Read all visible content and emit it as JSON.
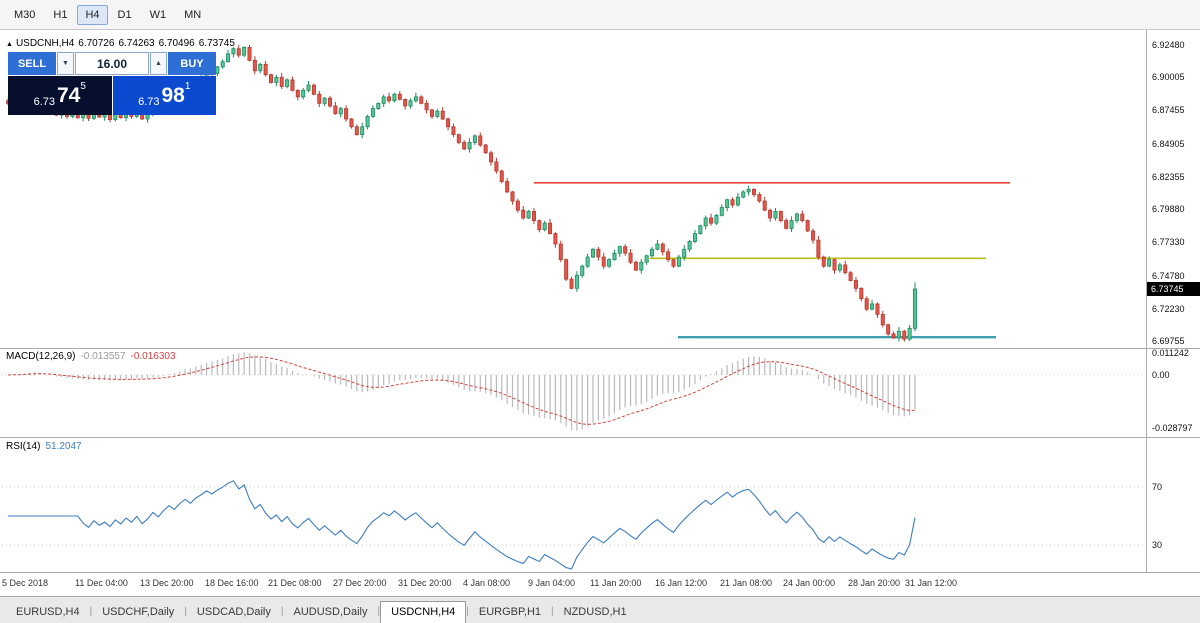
{
  "icons": {
    "chart_arrow": "▲",
    "spin_down": "▼",
    "spin_up": "▲"
  },
  "toolbar": {
    "timeframes": [
      "M30",
      "H1",
      "H4",
      "D1",
      "W1",
      "MN"
    ],
    "active": "H4"
  },
  "chart_header": {
    "symbol": "USDCNH,H4",
    "open": "6.70726",
    "high": "6.74263",
    "low": "6.70496",
    "close": "6.73745"
  },
  "trade_panel": {
    "sell_label": "SELL",
    "buy_label": "BUY",
    "volume": "16.00",
    "sell_price": {
      "small": "6.73",
      "big": "74",
      "sup": "5"
    },
    "buy_price": {
      "small": "6.73",
      "big": "98",
      "sup": "1"
    }
  },
  "macd_panel": {
    "title": "MACD(12,26,9)",
    "macd_value": "-0.013557",
    "signal_value": "-0.016303"
  },
  "rsi_panel": {
    "title": "RSI(14)",
    "value": "51.2047"
  },
  "tabs": {
    "items": [
      "EURUSD,H4",
      "USDCHF,Daily",
      "USDCAD,Daily",
      "AUDUSD,Daily",
      "USDCNH,H4",
      "EURGBP,H1",
      "NZDUSD,H1"
    ],
    "active": "USDCNH,H4"
  },
  "colors": {
    "bull": "#57c695",
    "bull_border": "#1d8a60",
    "bear": "#e2574a",
    "bear_border": "#b63a30",
    "macd_hist": "#b9b9b9",
    "macd_signal": "#d94040",
    "rsi": "#3d7dc4",
    "resistance": "#e8483c",
    "pivot": "#b9bd18",
    "support": "#3e9fae",
    "trade_blue": "#2e6fd6",
    "badge_bg": "#000000"
  },
  "chart_data": {
    "type": "candlestick",
    "symbol": "USDCNH",
    "timeframe": "H4",
    "current_price": 6.73745,
    "last_candle_ohlc": [
      6.70726,
      6.74263,
      6.70496,
      6.73745
    ],
    "price_ticks": [
      6.9248,
      6.90005,
      6.87455,
      6.84905,
      6.82355,
      6.7988,
      6.7733,
      6.7478,
      6.7223,
      6.69755
    ],
    "hlines": [
      {
        "name": "resistance-line",
        "price": 6.819,
        "color_key": "resistance"
      },
      {
        "name": "pivot-line",
        "price": 6.761,
        "color_key": "pivot"
      },
      {
        "name": "support-line",
        "price": 6.7005,
        "color_key": "support"
      }
    ],
    "closes": [
      6.88,
      6.884,
      6.879,
      6.886,
      6.89,
      6.885,
      6.878,
      6.873,
      6.877,
      6.871,
      6.8755,
      6.87,
      6.8745,
      6.869,
      6.873,
      6.8685,
      6.874,
      6.8695,
      6.872,
      6.8675,
      6.873,
      6.869,
      6.874,
      6.87,
      6.875,
      6.868,
      6.872,
      6.878,
      6.874,
      6.88,
      6.885,
      6.882,
      6.888,
      6.893,
      6.89,
      6.896,
      6.9,
      6.905,
      6.903,
      6.908,
      6.912,
      6.918,
      6.922,
      6.917,
      6.923,
      6.913,
      6.905,
      6.91,
      6.902,
      6.896,
      6.9,
      6.893,
      6.898,
      6.89,
      6.885,
      6.89,
      6.894,
      6.887,
      6.88,
      6.884,
      6.878,
      6.872,
      6.876,
      6.868,
      6.862,
      6.856,
      6.862,
      6.87,
      6.876,
      6.88,
      6.885,
      6.882,
      6.887,
      6.883,
      6.878,
      6.882,
      6.885,
      6.88,
      6.875,
      6.87,
      6.874,
      6.868,
      6.862,
      6.856,
      6.85,
      6.845,
      6.85,
      6.855,
      6.848,
      6.842,
      6.835,
      6.828,
      6.82,
      6.812,
      6.805,
      6.798,
      6.792,
      6.797,
      6.79,
      6.783,
      6.788,
      6.78,
      6.772,
      6.76,
      6.745,
      6.738,
      6.748,
      6.755,
      6.762,
      6.768,
      6.762,
      6.755,
      6.76,
      6.765,
      6.77,
      6.765,
      6.758,
      6.752,
      6.758,
      6.763,
      6.768,
      6.772,
      6.766,
      6.76,
      6.755,
      6.762,
      6.768,
      6.774,
      6.78,
      6.786,
      6.792,
      6.788,
      6.794,
      6.8,
      6.806,
      6.802,
      6.808,
      6.812,
      6.814,
      6.81,
      6.805,
      6.798,
      6.792,
      6.797,
      6.79,
      6.784,
      6.79,
      6.795,
      6.79,
      6.782,
      6.775,
      6.762,
      6.755,
      6.76,
      6.752,
      6.756,
      6.75,
      6.744,
      6.738,
      6.73,
      6.722,
      6.726,
      6.718,
      6.71,
      6.703,
      6.7,
      6.705,
      6.699,
      6.7073,
      6.7374
    ],
    "indicators": {
      "macd": {
        "type": "macd_histogram",
        "params": [
          12,
          26,
          9
        ],
        "current_macd": -0.013557,
        "current_signal": -0.016303,
        "scale_top": 0.011242,
        "scale_zero": 0.0,
        "scale_bottom": -0.028797
      },
      "rsi": {
        "type": "line",
        "params": [
          14
        ],
        "current": 51.2047,
        "scale_marks": [
          70,
          30
        ]
      }
    },
    "x_labels": [
      "5 Dec 2018",
      "11 Dec 04:00",
      "13 Dec 20:00",
      "18 Dec 16:00",
      "21 Dec 08:00",
      "27 Dec 20:00",
      "31 Dec 20:00",
      "4 Jan 08:00",
      "9 Jan 04:00",
      "11 Jan 20:00",
      "16 Jan 12:00",
      "21 Jan 08:00",
      "24 Jan 00:00",
      "28 Jan 20:00",
      "31 Jan 12:00"
    ]
  }
}
